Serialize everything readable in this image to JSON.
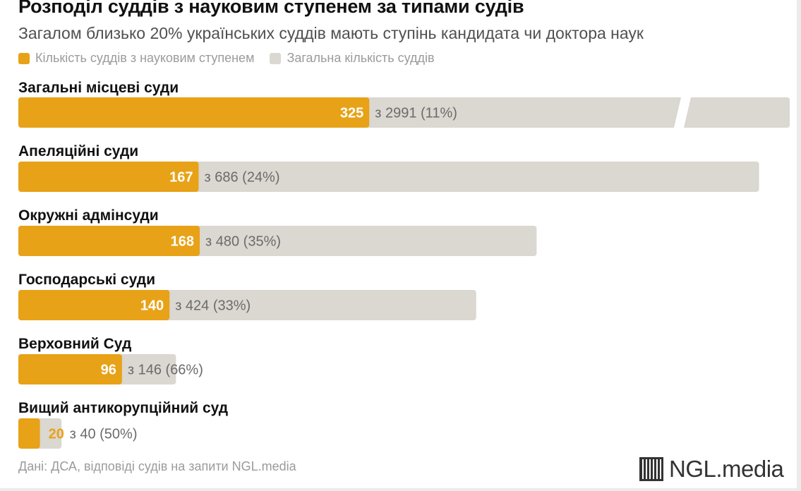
{
  "title": "Розподіл суддів з науковим ступенем за типами судів",
  "subtitle": "Загалом близько 20% українських суддів мають ступінь кандидата чи доктора наук",
  "legend": {
    "degree_label": "Кількість суддів з науковим ступенем",
    "total_label": "Загальна кількість суддів"
  },
  "colors": {
    "degree": "#e8a217",
    "total": "#dbd7d1",
    "value_text_inside": "#ffffff",
    "value_text_outside": "#e8a217",
    "annotation_text": "#6b6b6b"
  },
  "chart_data": {
    "type": "bar",
    "orientation": "horizontal",
    "stacked": "overlay",
    "title": "Розподіл суддів з науковим ступенем за типами судів",
    "subtitle": "Загалом близько 20% українських суддів мають ступінь кандидата чи доктора наук",
    "categories": [
      "Загальні місцеві суди",
      "Апеляційні суди",
      "Окружні адмінсуди",
      "Господарські суди",
      "Верховний Суд",
      "Вищий антикорупційний суд"
    ],
    "series": [
      {
        "name": "Кількість суддів з науковим ступенем",
        "values": [
          325,
          167,
          168,
          140,
          96,
          20
        ]
      },
      {
        "name": "Загальна кількість суддів",
        "values": [
          2991,
          686,
          480,
          424,
          146,
          40
        ]
      }
    ],
    "annotations": [
      "з 2991 (11%)",
      "з 686 (24%)",
      "з 480 (35%)",
      "з 424 (33%)",
      "з 146 (66%)",
      "з 40 (50%)"
    ],
    "first_bar_axis_break": true,
    "legend_position": "top-left",
    "grid": false
  },
  "footer": {
    "source": "Дані: ДСА, відповіді судів на запити NGL.media",
    "brand": "NGL.media"
  }
}
